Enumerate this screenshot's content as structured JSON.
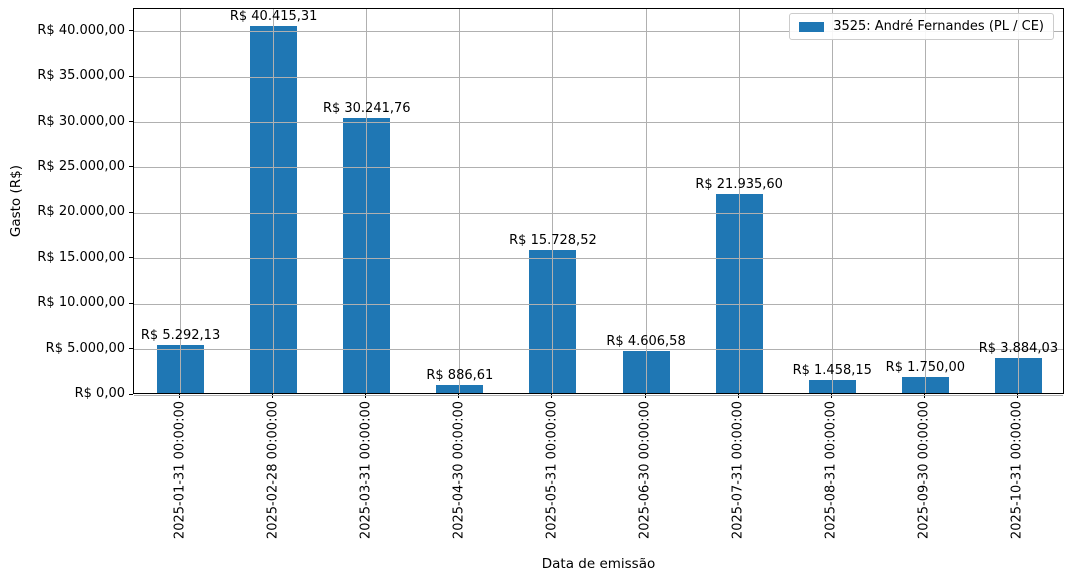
{
  "chart_data": {
    "type": "bar",
    "title": "",
    "xlabel": "Data de emissão",
    "ylabel": "Gasto (R$)",
    "categories": [
      "2025-01-31 00:00:00",
      "2025-02-28 00:00:00",
      "2025-03-31 00:00:00",
      "2025-04-30 00:00:00",
      "2025-05-31 00:00:00",
      "2025-06-30 00:00:00",
      "2025-07-31 00:00:00",
      "2025-08-31 00:00:00",
      "2025-09-30 00:00:00",
      "2025-10-31 00:00:00"
    ],
    "series": [
      {
        "name": "3525: André Fernandes (PL / CE)",
        "values": [
          5292.13,
          40415.31,
          30241.76,
          886.61,
          15728.52,
          4606.58,
          21935.6,
          1458.15,
          1750.0,
          3884.03
        ]
      }
    ],
    "bar_value_labels": [
      "R$ 5.292,13",
      "R$ 40.415,31",
      "R$ 30.241,76",
      "R$ 886,61",
      "R$ 15.728,52",
      "R$ 4.606,58",
      "R$ 21.935,60",
      "R$ 1.458,15",
      "R$ 1.750,00",
      "R$ 3.884,03"
    ],
    "ytick_values": [
      0,
      5000,
      10000,
      15000,
      20000,
      25000,
      30000,
      35000,
      40000
    ],
    "ytick_labels": [
      "R$ 0,00",
      "R$ 5.000,00",
      "R$ 10.000,00",
      "R$ 15.000,00",
      "R$ 20.000,00",
      "R$ 25.000,00",
      "R$ 30.000,00",
      "R$ 35.000,00",
      "R$ 40.000,00"
    ],
    "ylim": [
      0,
      42500
    ],
    "grid": true,
    "grid_above_bars": true,
    "legend": {
      "label": "3525: André Fernandes (PL / CE)",
      "position": "upper right"
    },
    "colors": {
      "bar": "#1f77b4",
      "grid": "#b0b0b0",
      "spine": "#000000",
      "text": "#000000",
      "legend_border": "#cccccc"
    }
  }
}
